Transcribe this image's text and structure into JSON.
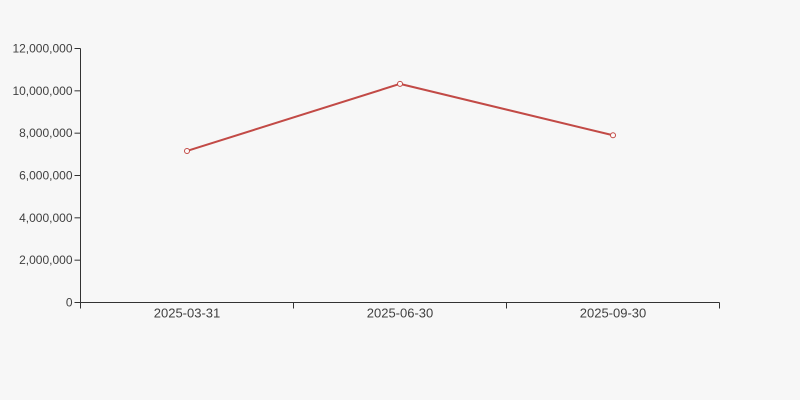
{
  "chart_data": {
    "type": "line",
    "categories": [
      "2025-03-31",
      "2025-06-30",
      "2025-09-30"
    ],
    "values": [
      7160000,
      10330000,
      7900000
    ],
    "title": "",
    "xlabel": "",
    "ylabel": "",
    "ylim": [
      0,
      12000000
    ],
    "y_tick_interval": 2000000,
    "y_tick_labels": [
      "0",
      "2,000,000",
      "4,000,000",
      "6,000,000",
      "8,000,000",
      "10,000,000",
      "12,000,000"
    ],
    "grid": false,
    "legend": false,
    "line_color": "#c24a46",
    "marker_style": "hollow-circle",
    "marker_fill": "#fcfbfa",
    "background_color": "#f7f7f7",
    "axis_color": "#333333",
    "label_color": "#404040"
  }
}
